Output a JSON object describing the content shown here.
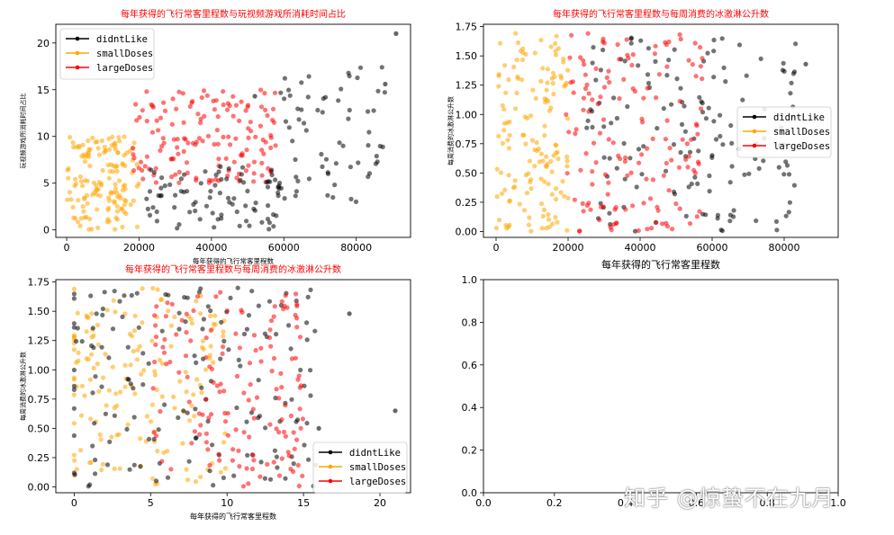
{
  "colors": {
    "didntLike": "#000000",
    "smallDoses": "#ffa500",
    "largeDoses": "#ff0000",
    "title": "#ff0000",
    "axis": "#000000"
  },
  "chart_data": [
    {
      "id": "ax1",
      "type": "scatter",
      "title": "每年获得的飞行常客里程数与玩视频游戏所消耗时间占比",
      "xlabel": "每年获得的飞行常客里程数",
      "ylabel": "玩视频游戏所消耗时间占比",
      "xlim": [
        -3000,
        95000
      ],
      "ylim": [
        -0.8,
        22
      ],
      "xticks": [
        0,
        20000,
        40000,
        60000,
        80000
      ],
      "xtick_labels": [
        "0",
        "20000",
        "40000",
        "60000",
        "80000"
      ],
      "yticks": [
        0,
        5,
        10,
        15,
        20
      ],
      "ytick_labels": [
        "0",
        "5",
        "10",
        "15",
        "20"
      ],
      "legend": {
        "position": "top-left",
        "entries": [
          "didntLike",
          "smallDoses",
          "largeDoses"
        ]
      },
      "series": [
        {
          "name": "smallDoses",
          "color": "#ffa500",
          "n": 150,
          "clusters": [
            {
              "x": [
                0,
                20000
              ],
              "y": [
                0,
                10
              ]
            }
          ]
        },
        {
          "name": "largeDoses",
          "color": "#ff0000",
          "n": 150,
          "clusters": [
            {
              "x": [
                18000,
                58000
              ],
              "y": [
                5,
                15
              ]
            }
          ]
        },
        {
          "name": "didntLike",
          "color": "#000000",
          "n": 150,
          "clusters": [
            {
              "x": [
                22000,
                60000
              ],
              "y": [
                0,
                7
              ],
              "w": 0.55
            },
            {
              "x": [
                58000,
                88000
              ],
              "y": [
                3,
                18
              ],
              "w": 0.45
            }
          ],
          "extra": [
            [
              91000,
              21
            ],
            [
              52000,
              14.3
            ],
            [
              88000,
              15.6
            ]
          ]
        }
      ]
    },
    {
      "id": "ax2",
      "type": "scatter",
      "title": "每年获得的飞行常客里程数与每周消费的冰激淋公升数",
      "xlabel": "每年获得的飞行常客里程数",
      "ylabel": "每周消费的冰激淋公升数",
      "xlim": [
        -3500,
        95000
      ],
      "ylim": [
        -0.05,
        1.77
      ],
      "xticks": [
        0,
        20000,
        40000,
        60000,
        80000
      ],
      "xtick_labels": [
        "0",
        "20000",
        "40000",
        "60000",
        "80000"
      ],
      "yticks": [
        0,
        0.25,
        0.5,
        0.75,
        1.0,
        1.25,
        1.5,
        1.75
      ],
      "ytick_labels": [
        "0.00",
        "0.25",
        "0.50",
        "0.75",
        "1.00",
        "1.25",
        "1.50",
        "1.75"
      ],
      "legend": {
        "position": "center-right",
        "entries": [
          "didntLike",
          "smallDoses",
          "largeDoses"
        ]
      },
      "series": [
        {
          "name": "didntLike",
          "color": "#000000",
          "n": 150,
          "clusters": [
            {
              "x": [
                25000,
                85000
              ],
              "y": [
                0,
                1.7
              ]
            }
          ],
          "extra": [
            [
              86000,
              1.43
            ],
            [
              60000,
              0.65
            ]
          ]
        },
        {
          "name": "smallDoses",
          "color": "#ffa500",
          "n": 150,
          "clusters": [
            {
              "x": [
                0,
                20000
              ],
              "y": [
                0,
                1.7
              ]
            }
          ]
        },
        {
          "name": "largeDoses",
          "color": "#ff0000",
          "n": 150,
          "clusters": [
            {
              "x": [
                19000,
                58000
              ],
              "y": [
                0,
                1.7
              ]
            }
          ]
        }
      ]
    },
    {
      "id": "ax3",
      "type": "scatter",
      "title": "每年获得的飞行常客里程数与每周消费的冰激淋公升数",
      "xlabel": "每年获得的飞行常客里程数",
      "ylabel": "每周消费的冰激淋公升数",
      "xlim": [
        -1.2,
        22
      ],
      "ylim": [
        -0.05,
        1.77
      ],
      "xticks": [
        0,
        5,
        10,
        15,
        20
      ],
      "xtick_labels": [
        "0",
        "5",
        "10",
        "15",
        "20"
      ],
      "yticks": [
        0,
        0.25,
        0.5,
        0.75,
        1.0,
        1.25,
        1.5,
        1.75
      ],
      "ytick_labels": [
        "0.00",
        "0.25",
        "0.50",
        "0.75",
        "1.00",
        "1.25",
        "1.50",
        "1.75"
      ],
      "legend": {
        "position": "bottom-right",
        "entries": [
          "didntLike",
          "smallDoses",
          "largeDoses"
        ]
      },
      "series": [
        {
          "name": "smallDoses",
          "color": "#ffa500",
          "n": 150,
          "clusters": [
            {
              "x": [
                0,
                10
              ],
              "y": [
                0,
                1.7
              ]
            }
          ],
          "zeros": 12
        },
        {
          "name": "didntLike",
          "color": "#000000",
          "n": 150,
          "clusters": [
            {
              "x": [
                0,
                16
              ],
              "y": [
                0,
                1.7
              ]
            }
          ],
          "zeros": 10,
          "extra": [
            [
              21,
              0.65
            ],
            [
              18,
              1.48
            ],
            [
              16,
              0.5
            ]
          ]
        },
        {
          "name": "largeDoses",
          "color": "#ff0000",
          "n": 150,
          "clusters": [
            {
              "x": [
                5,
                15
              ],
              "y": [
                0,
                1.7
              ]
            }
          ]
        }
      ]
    },
    {
      "id": "ax4",
      "type": "scatter",
      "title": "",
      "xlabel": "",
      "ylabel": "",
      "xlim": [
        0,
        1
      ],
      "ylim": [
        0,
        1
      ],
      "xticks": [
        0,
        0.2,
        0.4,
        0.6,
        0.8,
        1.0
      ],
      "xtick_labels": [
        "0.0",
        "0.2",
        "0.4",
        "0.6",
        "0.8",
        "1.0"
      ],
      "yticks": [
        0,
        0.2,
        0.4,
        0.6,
        0.8,
        1.0
      ],
      "ytick_labels": [
        "0.0",
        "0.2",
        "0.4",
        "0.6",
        "0.8",
        "1.0"
      ],
      "legend": null,
      "series": []
    }
  ],
  "watermark": "知乎 @惊蛰不在九月"
}
